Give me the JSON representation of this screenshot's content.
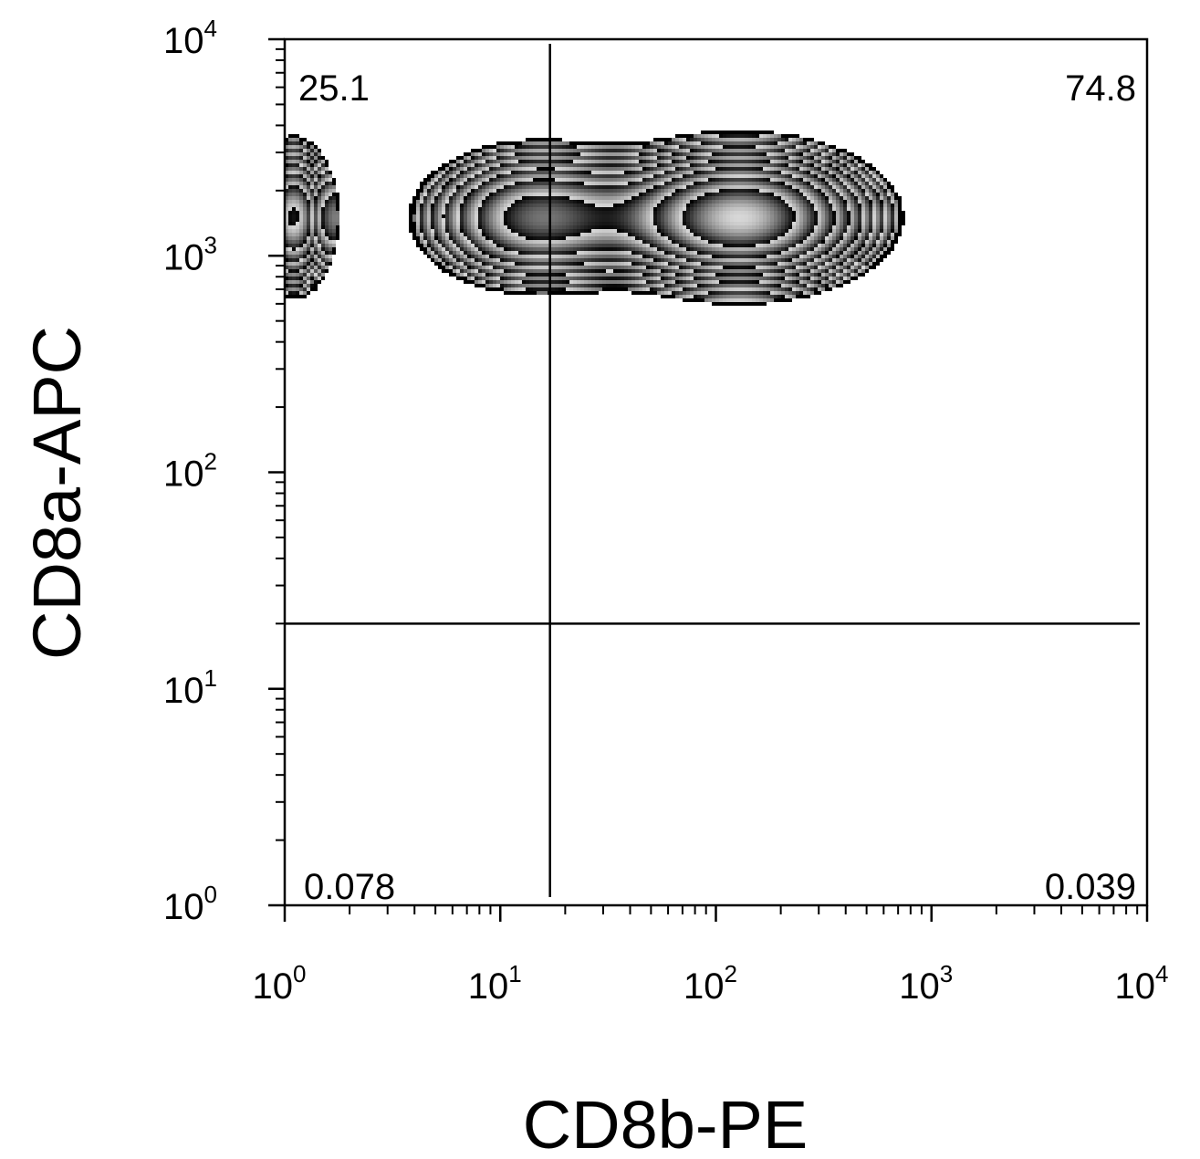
{
  "chart_data": {
    "type": "contour",
    "xlabel": "CD8b-PE",
    "ylabel": "CD8a-APC",
    "xscale": "log",
    "yscale": "log",
    "xlim": [
      1,
      10000
    ],
    "ylim": [
      1,
      10000
    ],
    "x_ticks": [
      {
        "base": "10",
        "exp": "0",
        "value": 1
      },
      {
        "base": "10",
        "exp": "1",
        "value": 10
      },
      {
        "base": "10",
        "exp": "2",
        "value": 100
      },
      {
        "base": "10",
        "exp": "3",
        "value": 1000
      },
      {
        "base": "10",
        "exp": "4",
        "value": 10000
      }
    ],
    "y_ticks": [
      {
        "base": "10",
        "exp": "0",
        "value": 1
      },
      {
        "base": "10",
        "exp": "1",
        "value": 10
      },
      {
        "base": "10",
        "exp": "2",
        "value": 100
      },
      {
        "base": "10",
        "exp": "3",
        "value": 1000
      },
      {
        "base": "10",
        "exp": "4",
        "value": 10000
      }
    ],
    "gates": {
      "x": 17,
      "y": 20
    },
    "quadrants": [
      {
        "id": "upper-left",
        "label": "25.1"
      },
      {
        "id": "upper-right",
        "label": "74.8"
      },
      {
        "id": "lower-left",
        "label": "0.078"
      },
      {
        "id": "lower-right",
        "label": "0.039"
      }
    ],
    "populations": [
      {
        "name": "",
        "x": 130,
        "y": 1500,
        "sx": 0.32,
        "sy": 0.17,
        "weight": 1.0
      },
      {
        "name": "",
        "x": 1.1,
        "y": 1500,
        "sx": 0.1,
        "sy": 0.18,
        "weight": 0.55
      },
      {
        "name": "",
        "x": 15,
        "y": 1500,
        "sx": 0.3,
        "sy": 0.18,
        "weight": 0.45
      }
    ],
    "grid": false,
    "legend": "none"
  }
}
